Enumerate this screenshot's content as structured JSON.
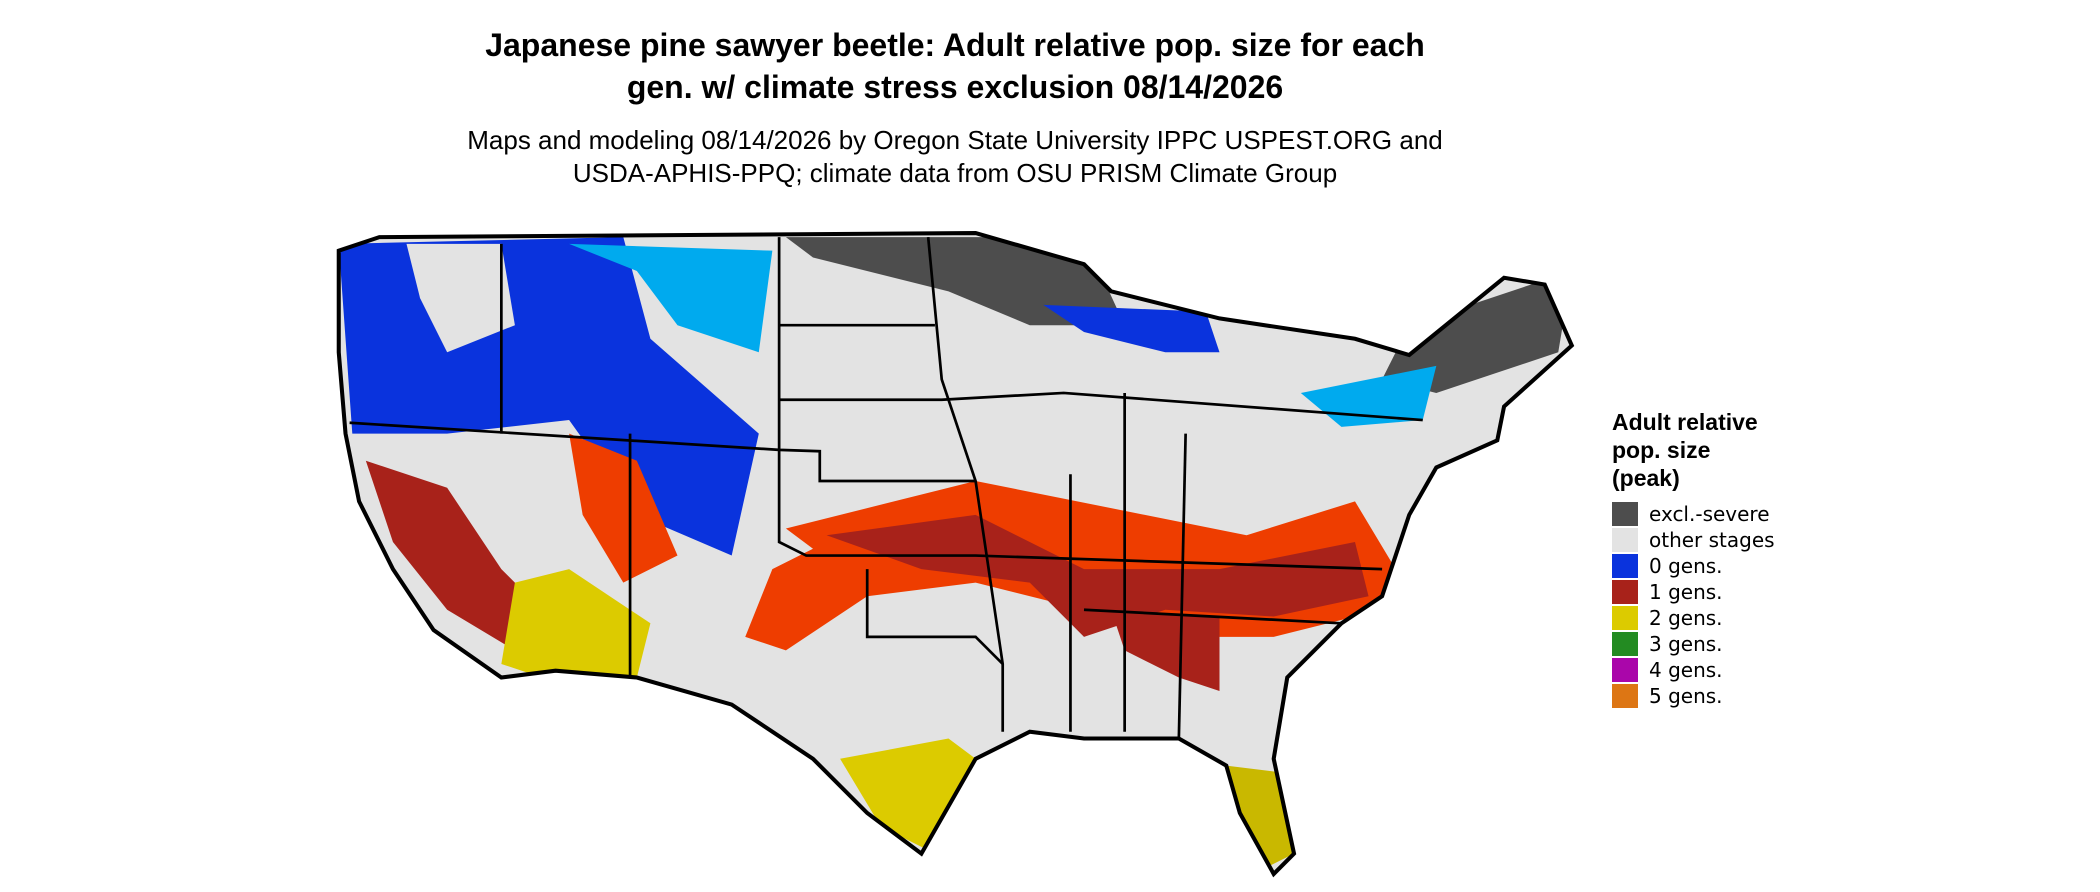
{
  "title": [
    "Japanese pine sawyer beetle: Adult relative pop. size for each",
    "gen. w/ climate stress exclusion 08/14/2026"
  ],
  "subtitle": [
    "Maps and modeling 08/14/2026 by Oregon State University IPPC USPEST.ORG and",
    "USDA-APHIS-PPQ; climate data from OSU PRISM Climate Group"
  ],
  "legend": {
    "title": [
      "Adult relative",
      "pop. size",
      "(peak)"
    ],
    "items": [
      {
        "label": "excl.-severe",
        "color": "#4d4d4d"
      },
      {
        "label": "other stages",
        "color": "#e3e3e3"
      },
      {
        "label": "0 gens.",
        "color": "#0a33dd"
      },
      {
        "label": "1 gens.",
        "color": "#a8221a"
      },
      {
        "label": "2 gens.",
        "color": "#dccb00"
      },
      {
        "label": "3 gens.",
        "color": "#238b22"
      },
      {
        "label": "4 gens.",
        "color": "#aa06aa"
      },
      {
        "label": "5 gens.",
        "color": "#dd7614"
      }
    ]
  }
}
